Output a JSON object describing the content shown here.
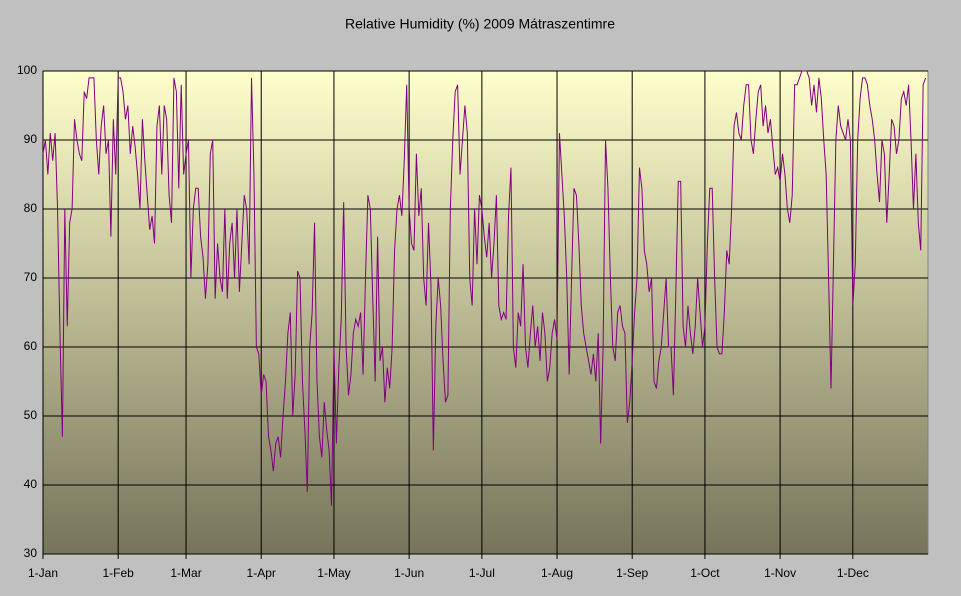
{
  "chart_data": {
    "type": "line",
    "title": "Relative Humidity (%) 2009 Mátraszentimre",
    "categories": [
      "1-Jan",
      null,
      null,
      null,
      null,
      null,
      null,
      null,
      null,
      null,
      null,
      null,
      null,
      null,
      null,
      null,
      null,
      null,
      null,
      null,
      null,
      null,
      null,
      null,
      null,
      null,
      null,
      null,
      null,
      null,
      null,
      "1-Feb",
      null,
      null,
      null,
      null,
      null,
      null,
      null,
      null,
      null,
      null,
      null,
      null,
      null,
      null,
      null,
      null,
      null,
      null,
      null,
      null,
      null,
      null,
      null,
      null,
      null,
      null,
      null,
      "1-Mar",
      null,
      null,
      null,
      null,
      null,
      null,
      null,
      null,
      null,
      null,
      null,
      null,
      null,
      null,
      null,
      null,
      null,
      null,
      null,
      null,
      null,
      null,
      null,
      null,
      null,
      null,
      null,
      null,
      null,
      null,
      "1-Apr",
      null,
      null,
      null,
      null,
      null,
      null,
      null,
      null,
      null,
      null,
      null,
      null,
      null,
      null,
      null,
      null,
      null,
      null,
      null,
      null,
      null,
      null,
      null,
      null,
      null,
      null,
      null,
      null,
      null,
      "1-May",
      null,
      null,
      null,
      null,
      null,
      null,
      null,
      null,
      null,
      null,
      null,
      null,
      null,
      null,
      null,
      null,
      null,
      null,
      null,
      null,
      null,
      null,
      null,
      null,
      null,
      null,
      null,
      null,
      null,
      null,
      "1-Jun",
      null,
      null,
      null,
      null,
      null,
      null,
      null,
      null,
      null,
      null,
      null,
      null,
      null,
      null,
      null,
      null,
      null,
      null,
      null,
      null,
      null,
      null,
      null,
      null,
      null,
      null,
      null,
      null,
      null,
      "1-Jul",
      null,
      null,
      null,
      null,
      null,
      null,
      null,
      null,
      null,
      null,
      null,
      null,
      null,
      null,
      null,
      null,
      null,
      null,
      null,
      null,
      null,
      null,
      null,
      null,
      null,
      null,
      null,
      null,
      null,
      null,
      "1-Aug",
      null,
      null,
      null,
      null,
      null,
      null,
      null,
      null,
      null,
      null,
      null,
      null,
      null,
      null,
      null,
      null,
      null,
      null,
      null,
      null,
      null,
      null,
      null,
      null,
      null,
      null,
      null,
      null,
      null,
      null,
      "1-Sep",
      null,
      null,
      null,
      null,
      null,
      null,
      null,
      null,
      null,
      null,
      null,
      null,
      null,
      null,
      null,
      null,
      null,
      null,
      null,
      null,
      null,
      null,
      null,
      null,
      null,
      null,
      null,
      null,
      null,
      "1-Oct",
      null,
      null,
      null,
      null,
      null,
      null,
      null,
      null,
      null,
      null,
      null,
      null,
      null,
      null,
      null,
      null,
      null,
      null,
      null,
      null,
      null,
      null,
      null,
      null,
      null,
      null,
      null,
      null,
      null,
      null,
      "1-Nov",
      null,
      null,
      null,
      null,
      null,
      null,
      null,
      null,
      null,
      null,
      null,
      null,
      null,
      null,
      null,
      null,
      null,
      null,
      null,
      null,
      null,
      null,
      null,
      null,
      null,
      null,
      null,
      null,
      null,
      "1-Dec",
      null,
      null,
      null,
      null,
      null,
      null,
      null,
      null,
      null,
      null,
      null,
      null,
      null,
      null,
      null,
      null,
      null,
      null,
      null,
      null,
      null,
      null,
      null,
      null,
      null,
      null,
      null,
      null,
      null,
      null
    ],
    "series": [
      {
        "color": "#800080",
        "values": [
          88,
          90,
          85,
          91,
          87,
          91,
          80,
          62,
          47,
          80,
          63,
          78,
          80,
          93,
          90,
          88,
          87,
          97,
          96,
          99,
          99,
          99,
          90,
          85,
          92,
          95,
          88,
          90,
          76,
          93,
          85,
          99,
          99,
          97,
          93,
          95,
          88,
          92,
          89,
          85,
          80,
          93,
          87,
          82,
          77,
          79,
          75,
          92,
          95,
          85,
          95,
          93,
          82,
          78,
          99,
          97,
          83,
          98,
          85,
          88,
          90,
          70,
          80,
          83,
          83,
          76,
          73,
          67,
          72,
          88,
          90,
          67,
          75,
          70,
          68,
          80,
          67,
          75,
          78,
          70,
          80,
          68,
          75,
          82,
          80,
          72,
          99,
          85,
          60,
          59,
          53,
          56,
          55,
          47,
          45,
          42,
          46,
          47,
          44,
          50,
          55,
          62,
          65,
          50,
          56,
          71,
          70,
          55,
          48,
          39,
          60,
          65,
          78,
          55,
          47,
          44,
          52,
          48,
          45,
          37,
          60,
          46,
          57,
          64,
          81,
          60,
          53,
          56,
          62,
          64,
          63,
          65,
          56,
          70,
          82,
          80,
          67,
          55,
          76,
          58,
          60,
          52,
          57,
          54,
          60,
          74,
          80,
          82,
          79,
          87,
          98,
          80,
          75,
          74,
          88,
          79,
          83,
          70,
          66,
          78,
          69,
          45,
          63,
          70,
          66,
          58,
          52,
          53,
          80,
          90,
          97,
          98,
          85,
          90,
          95,
          91,
          70,
          66,
          80,
          72,
          82,
          80,
          76,
          73,
          78,
          70,
          75,
          82,
          66,
          64,
          65,
          64,
          79,
          86,
          60,
          57,
          65,
          63,
          72,
          60,
          57,
          62,
          66,
          60,
          63,
          58,
          65,
          62,
          55,
          57,
          62,
          64,
          61,
          91,
          85,
          79,
          70,
          56,
          70,
          83,
          82,
          75,
          66,
          62,
          60,
          58,
          56,
          59,
          55,
          62,
          46,
          60,
          90,
          83,
          70,
          60,
          58,
          65,
          66,
          63,
          62,
          49,
          52,
          58,
          65,
          70,
          86,
          83,
          74,
          72,
          68,
          70,
          55,
          54,
          58,
          60,
          65,
          70,
          60,
          60,
          53,
          68,
          84,
          84,
          63,
          60,
          66,
          62,
          59,
          63,
          70,
          65,
          60,
          63,
          75,
          83,
          83,
          70,
          60,
          59,
          59,
          65,
          74,
          72,
          80,
          92,
          94,
          91,
          90,
          95,
          98,
          98,
          90,
          88,
          93,
          97,
          98,
          92,
          95,
          91,
          93,
          89,
          85,
          86,
          84,
          88,
          85,
          80,
          78,
          82,
          98,
          98,
          99,
          100,
          100,
          100,
          99,
          95,
          98,
          94,
          99,
          96,
          90,
          85,
          70,
          54,
          72,
          90,
          95,
          92,
          91,
          90,
          93,
          90,
          66,
          72,
          90,
          96,
          99,
          99,
          98,
          95,
          93,
          90,
          85,
          81,
          90,
          88,
          78,
          85,
          93,
          92,
          88,
          90,
          96,
          97,
          95,
          98,
          90,
          80,
          88,
          78,
          74,
          98,
          99
        ]
      }
    ],
    "ylim": [
      30,
      100
    ],
    "yticks": [
      30,
      40,
      50,
      60,
      70,
      80,
      90,
      100
    ],
    "grid": true
  }
}
